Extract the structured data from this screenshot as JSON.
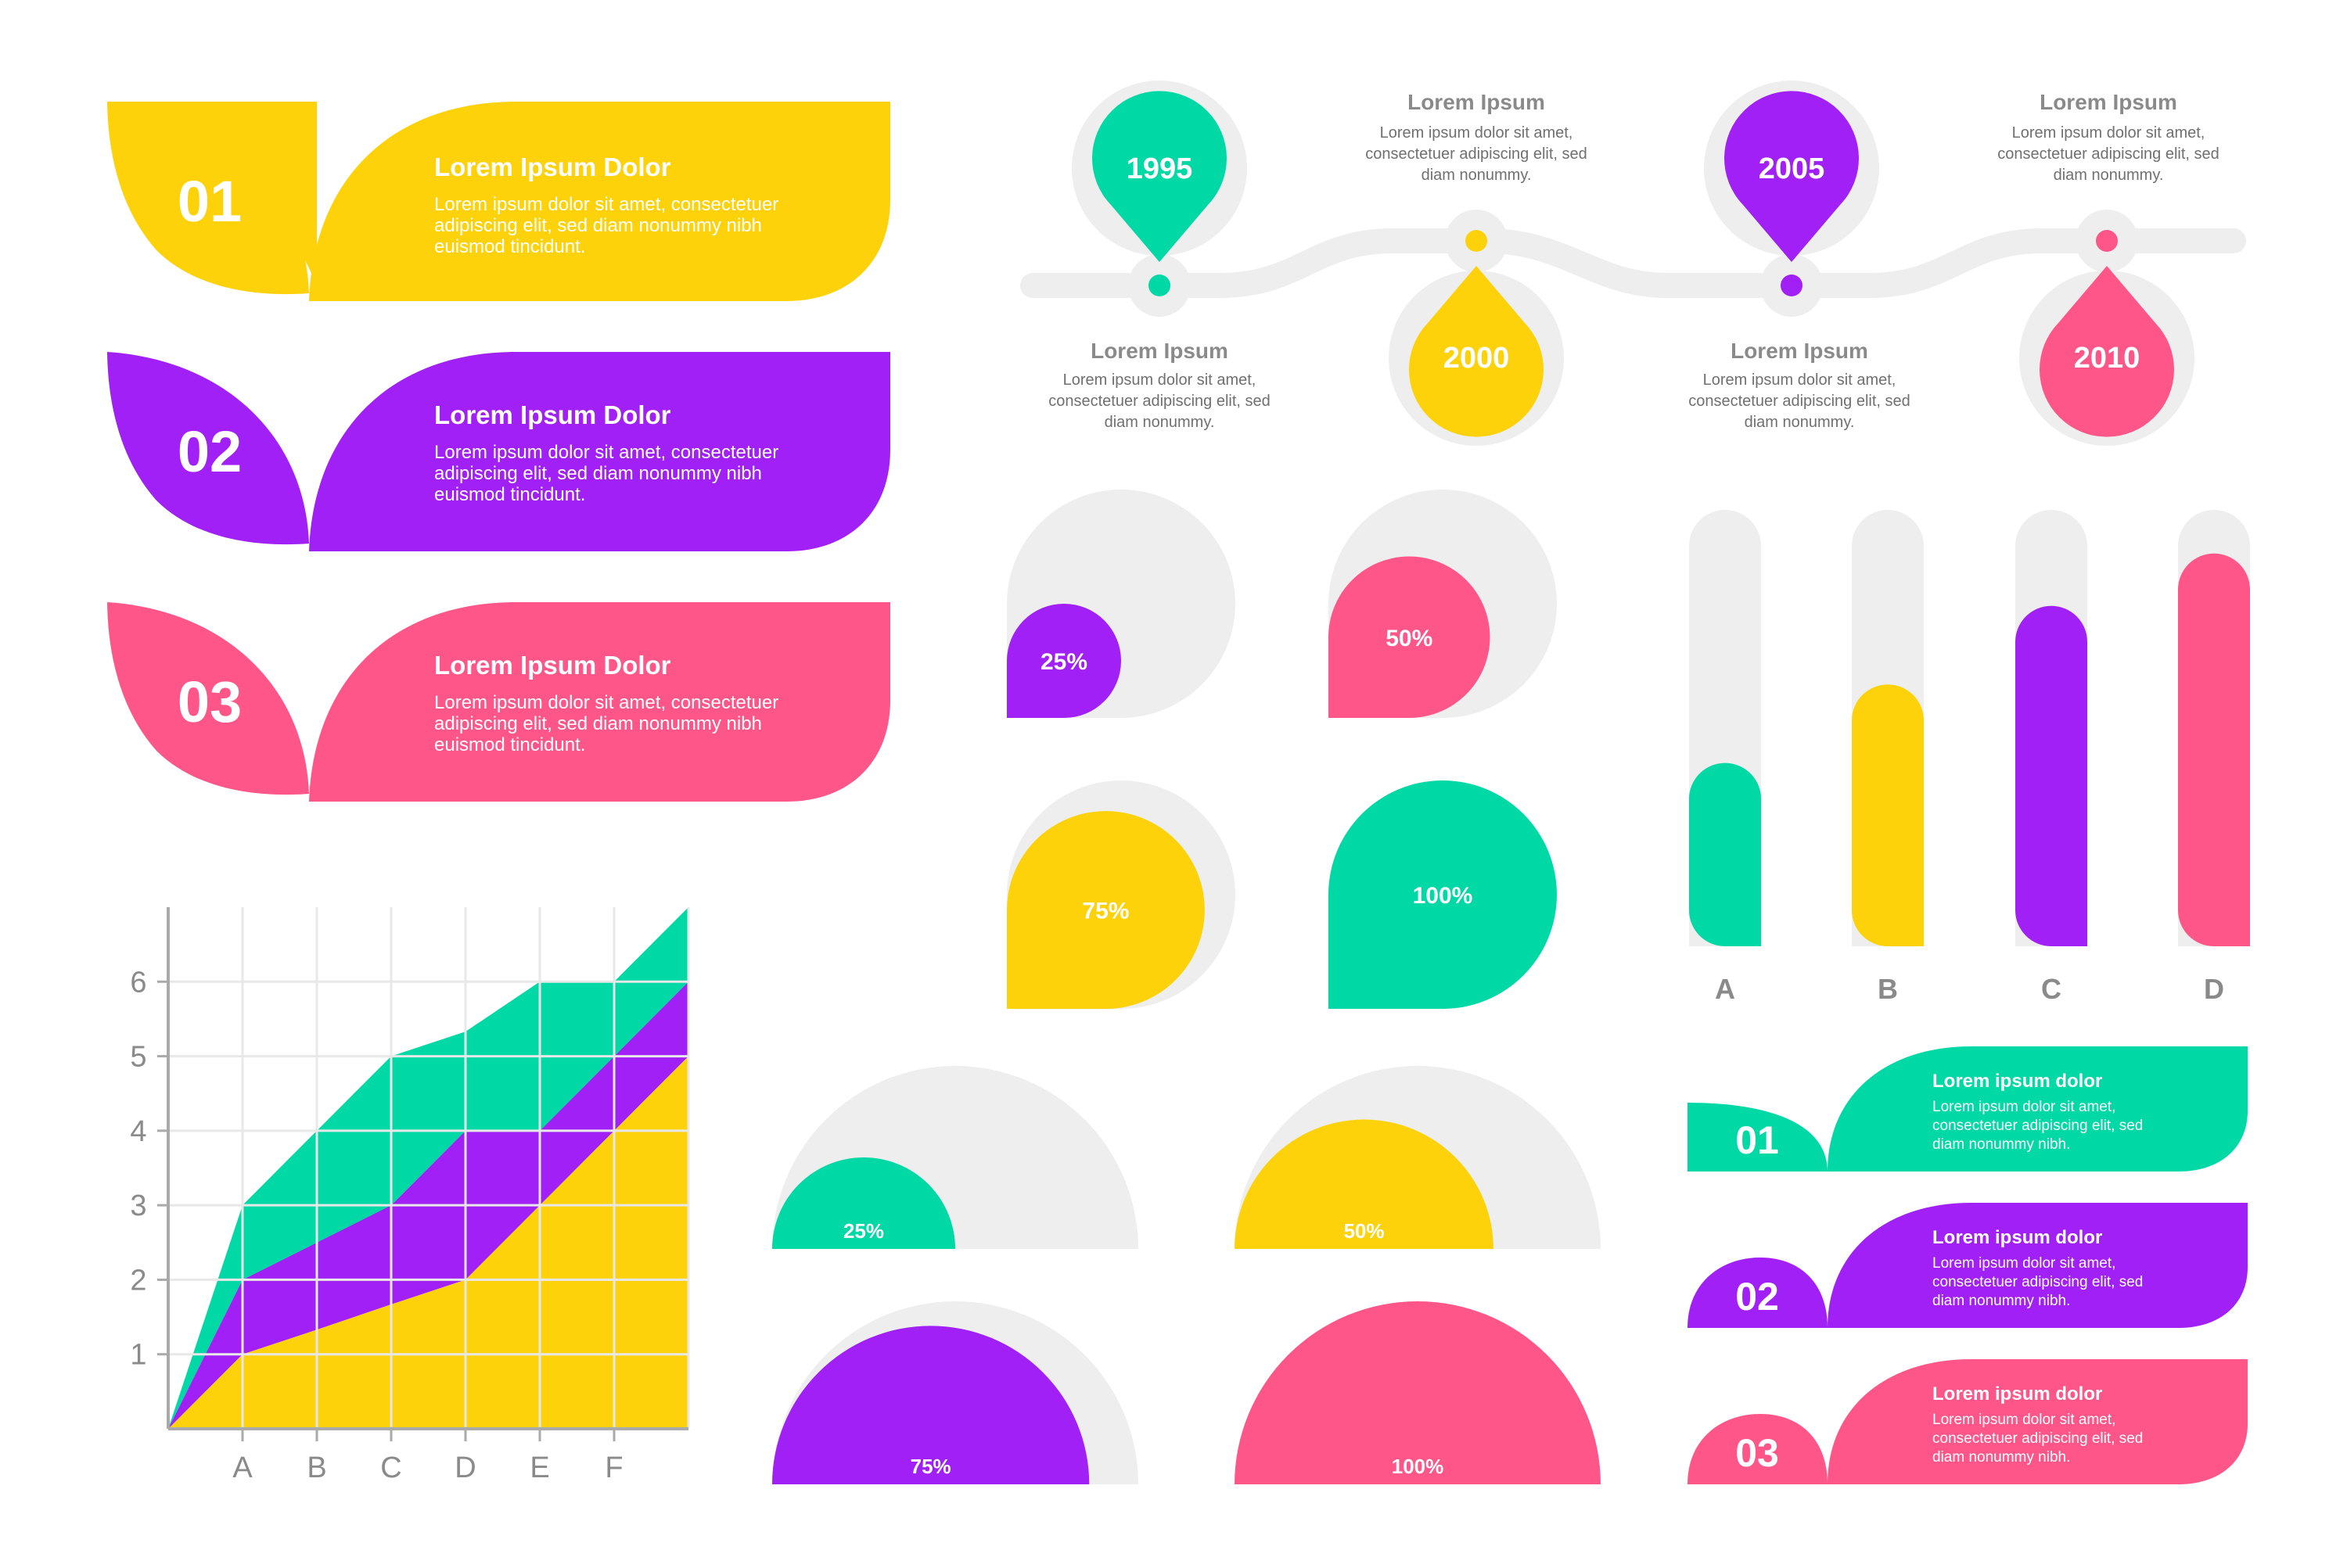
{
  "colors": {
    "yellow": "#FDD20A",
    "purple": "#A020F5",
    "pink": "#FF5689",
    "green": "#00D8A5",
    "track": "#EEEEEF",
    "gray_text": "#8A8A8A",
    "axis": "#AAAAAA",
    "white": "#FFFFFF"
  },
  "leaf_banners": [
    {
      "number": "01",
      "title": "Lorem Ipsum Dolor",
      "body": [
        "Lorem ipsum dolor sit amet, consectetuer",
        "adipiscing elit, sed diam nonummy nibh",
        "euismod tincidunt."
      ],
      "color": "#FDD20A"
    },
    {
      "number": "02",
      "title": "Lorem Ipsum Dolor",
      "body": [
        "Lorem ipsum dolor sit amet, consectetuer",
        "adipiscing elit, sed diam nonummy nibh",
        "euismod tincidunt."
      ],
      "color": "#A020F5"
    },
    {
      "number": "03",
      "title": "Lorem Ipsum Dolor",
      "body": [
        "Lorem ipsum dolor sit amet, consectetuer",
        "adipiscing elit, sed diam nonummy nibh",
        "euismod tincidunt."
      ],
      "color": "#FF5689"
    }
  ],
  "timeline": [
    {
      "year": "1995",
      "color": "#00D8A5",
      "label": "Lorem Ipsum",
      "body": [
        "Lorem ipsum dolor sit amet,",
        "consectetuer adipiscing elit, sed",
        "diam nonummy."
      ]
    },
    {
      "year": "2000",
      "color": "#FDD20A",
      "label": "Lorem Ipsum",
      "body": [
        "Lorem ipsum dolor sit amet,",
        "consectetuer adipiscing elit, sed",
        "diam nonummy."
      ]
    },
    {
      "year": "2005",
      "color": "#A020F5",
      "label": "Lorem Ipsum",
      "body": [
        "Lorem ipsum dolor sit amet,",
        "consectetuer adipiscing elit, sed",
        "diam nonummy."
      ]
    },
    {
      "year": "2010",
      "color": "#FF5689",
      "label": "Lorem Ipsum",
      "body": [
        "Lorem ipsum dolor sit amet,",
        "consectetuer adipiscing elit, sed",
        "diam nonummy."
      ]
    }
  ],
  "small_banners": [
    {
      "number": "01",
      "title": "Lorem ipsum dolor",
      "body": [
        "Lorem ipsum dolor sit amet,",
        "consectetuer adipiscing elit, sed",
        "diam nonummy nibh."
      ],
      "color": "#00D8A5"
    },
    {
      "number": "02",
      "title": "Lorem ipsum dolor",
      "body": [
        "Lorem ipsum dolor sit amet,",
        "consectetuer adipiscing elit, sed",
        "diam nonummy nibh."
      ],
      "color": "#A020F5"
    },
    {
      "number": "03",
      "title": "Lorem ipsum dolor",
      "body": [
        "Lorem ipsum dolor sit amet,",
        "consectetuer adipiscing elit, sed",
        "diam nonummy nibh."
      ],
      "color": "#FF5689"
    }
  ],
  "chart_data": [
    {
      "type": "area",
      "stacked": true,
      "categories": [
        "A",
        "B",
        "C",
        "D",
        "E",
        "F"
      ],
      "x": [
        0,
        1,
        2,
        3,
        4,
        5,
        6,
        7
      ],
      "series": [
        {
          "color": "#FDD20A",
          "values": [
            0,
            1,
            1.33,
            1.67,
            2,
            3,
            4,
            5
          ]
        },
        {
          "color": "#A020F5",
          "values": [
            0,
            1,
            1.17,
            1.33,
            2,
            1,
            1,
            1
          ]
        },
        {
          "color": "#00D8A5",
          "values": [
            0,
            1,
            1.5,
            2,
            1.33,
            2,
            1,
            1
          ]
        }
      ],
      "yticks": [
        1,
        2,
        3,
        4,
        5,
        6
      ],
      "ylim": [
        0,
        7
      ],
      "grid": true
    },
    {
      "type": "bar",
      "orientation": "vertical",
      "categories": [
        "A",
        "B",
        "C",
        "D"
      ],
      "values": [
        0.42,
        0.6,
        0.78,
        0.9
      ],
      "colors": [
        "#00D8A5",
        "#FDD20A",
        "#A020F5",
        "#FF5689"
      ]
    },
    {
      "type": "pie",
      "style": "quarter-circle gauges",
      "items": [
        {
          "label": "25%",
          "value": 25,
          "color": "#A020F5"
        },
        {
          "label": "50%",
          "value": 50,
          "color": "#FF5689"
        },
        {
          "label": "75%",
          "value": 75,
          "color": "#FDD20A"
        },
        {
          "label": "100%",
          "value": 100,
          "color": "#00D8A5"
        }
      ]
    },
    {
      "type": "pie",
      "style": "half-circle gauges",
      "items": [
        {
          "label": "25%",
          "value": 25,
          "color": "#00D8A5"
        },
        {
          "label": "50%",
          "value": 50,
          "color": "#FDD20A"
        },
        {
          "label": "75%",
          "value": 75,
          "color": "#A020F5"
        },
        {
          "label": "100%",
          "value": 100,
          "color": "#FF5689"
        }
      ]
    }
  ]
}
